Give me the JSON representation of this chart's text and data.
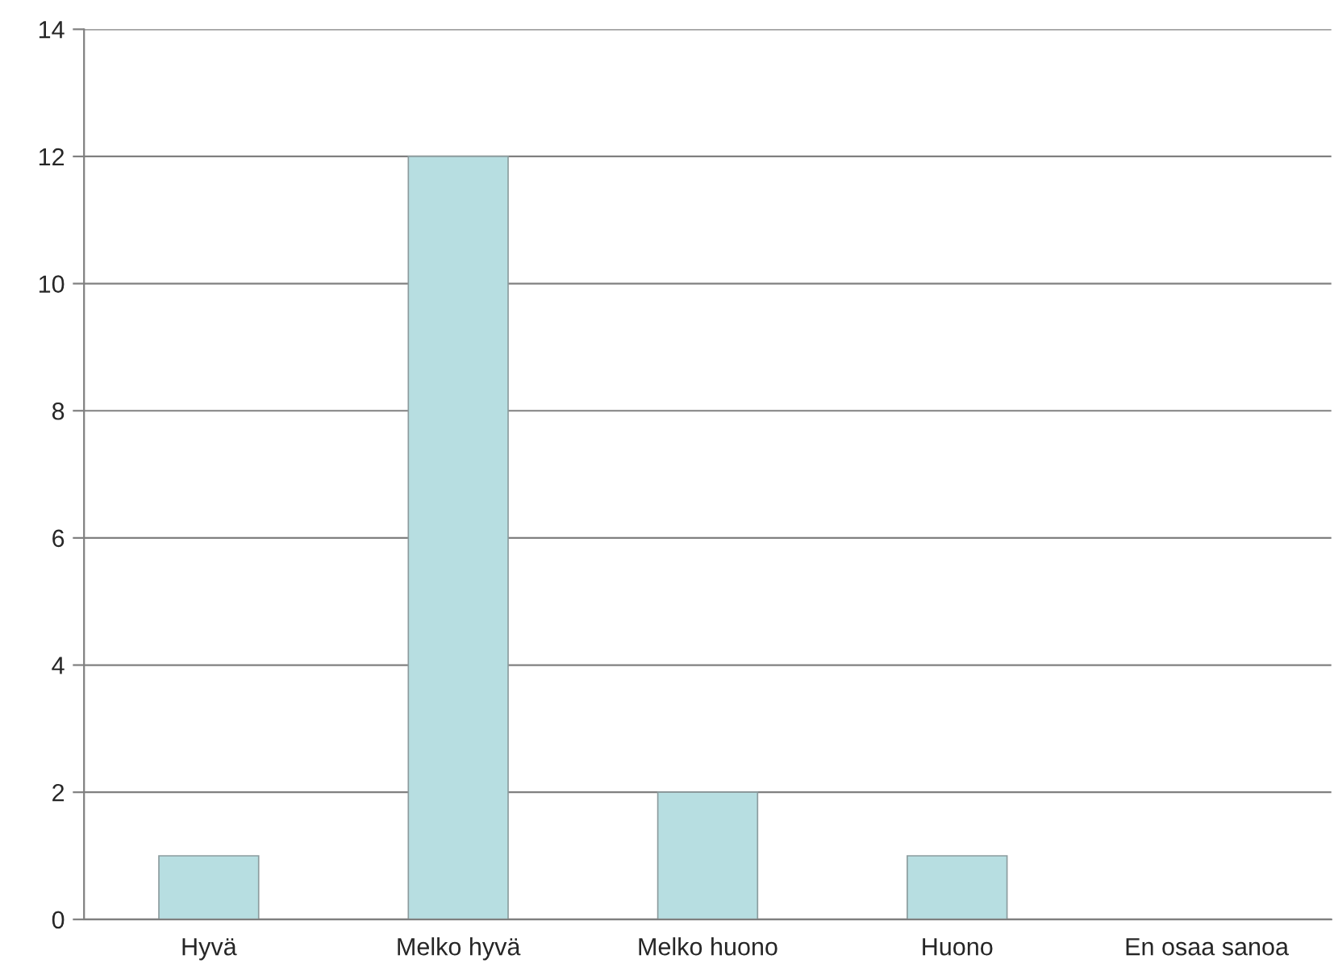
{
  "chart_data": {
    "type": "bar",
    "categories": [
      "Hyvä",
      "Melko hyvä",
      "Melko huono",
      "Huono",
      "En osaa sanoa"
    ],
    "values": [
      1,
      12,
      2,
      1,
      0
    ],
    "color": "#b7dee1",
    "ylim": [
      0,
      14
    ],
    "yticks": [
      0,
      2,
      4,
      6,
      8,
      10,
      12,
      14
    ],
    "grid": "y",
    "legend": false
  }
}
